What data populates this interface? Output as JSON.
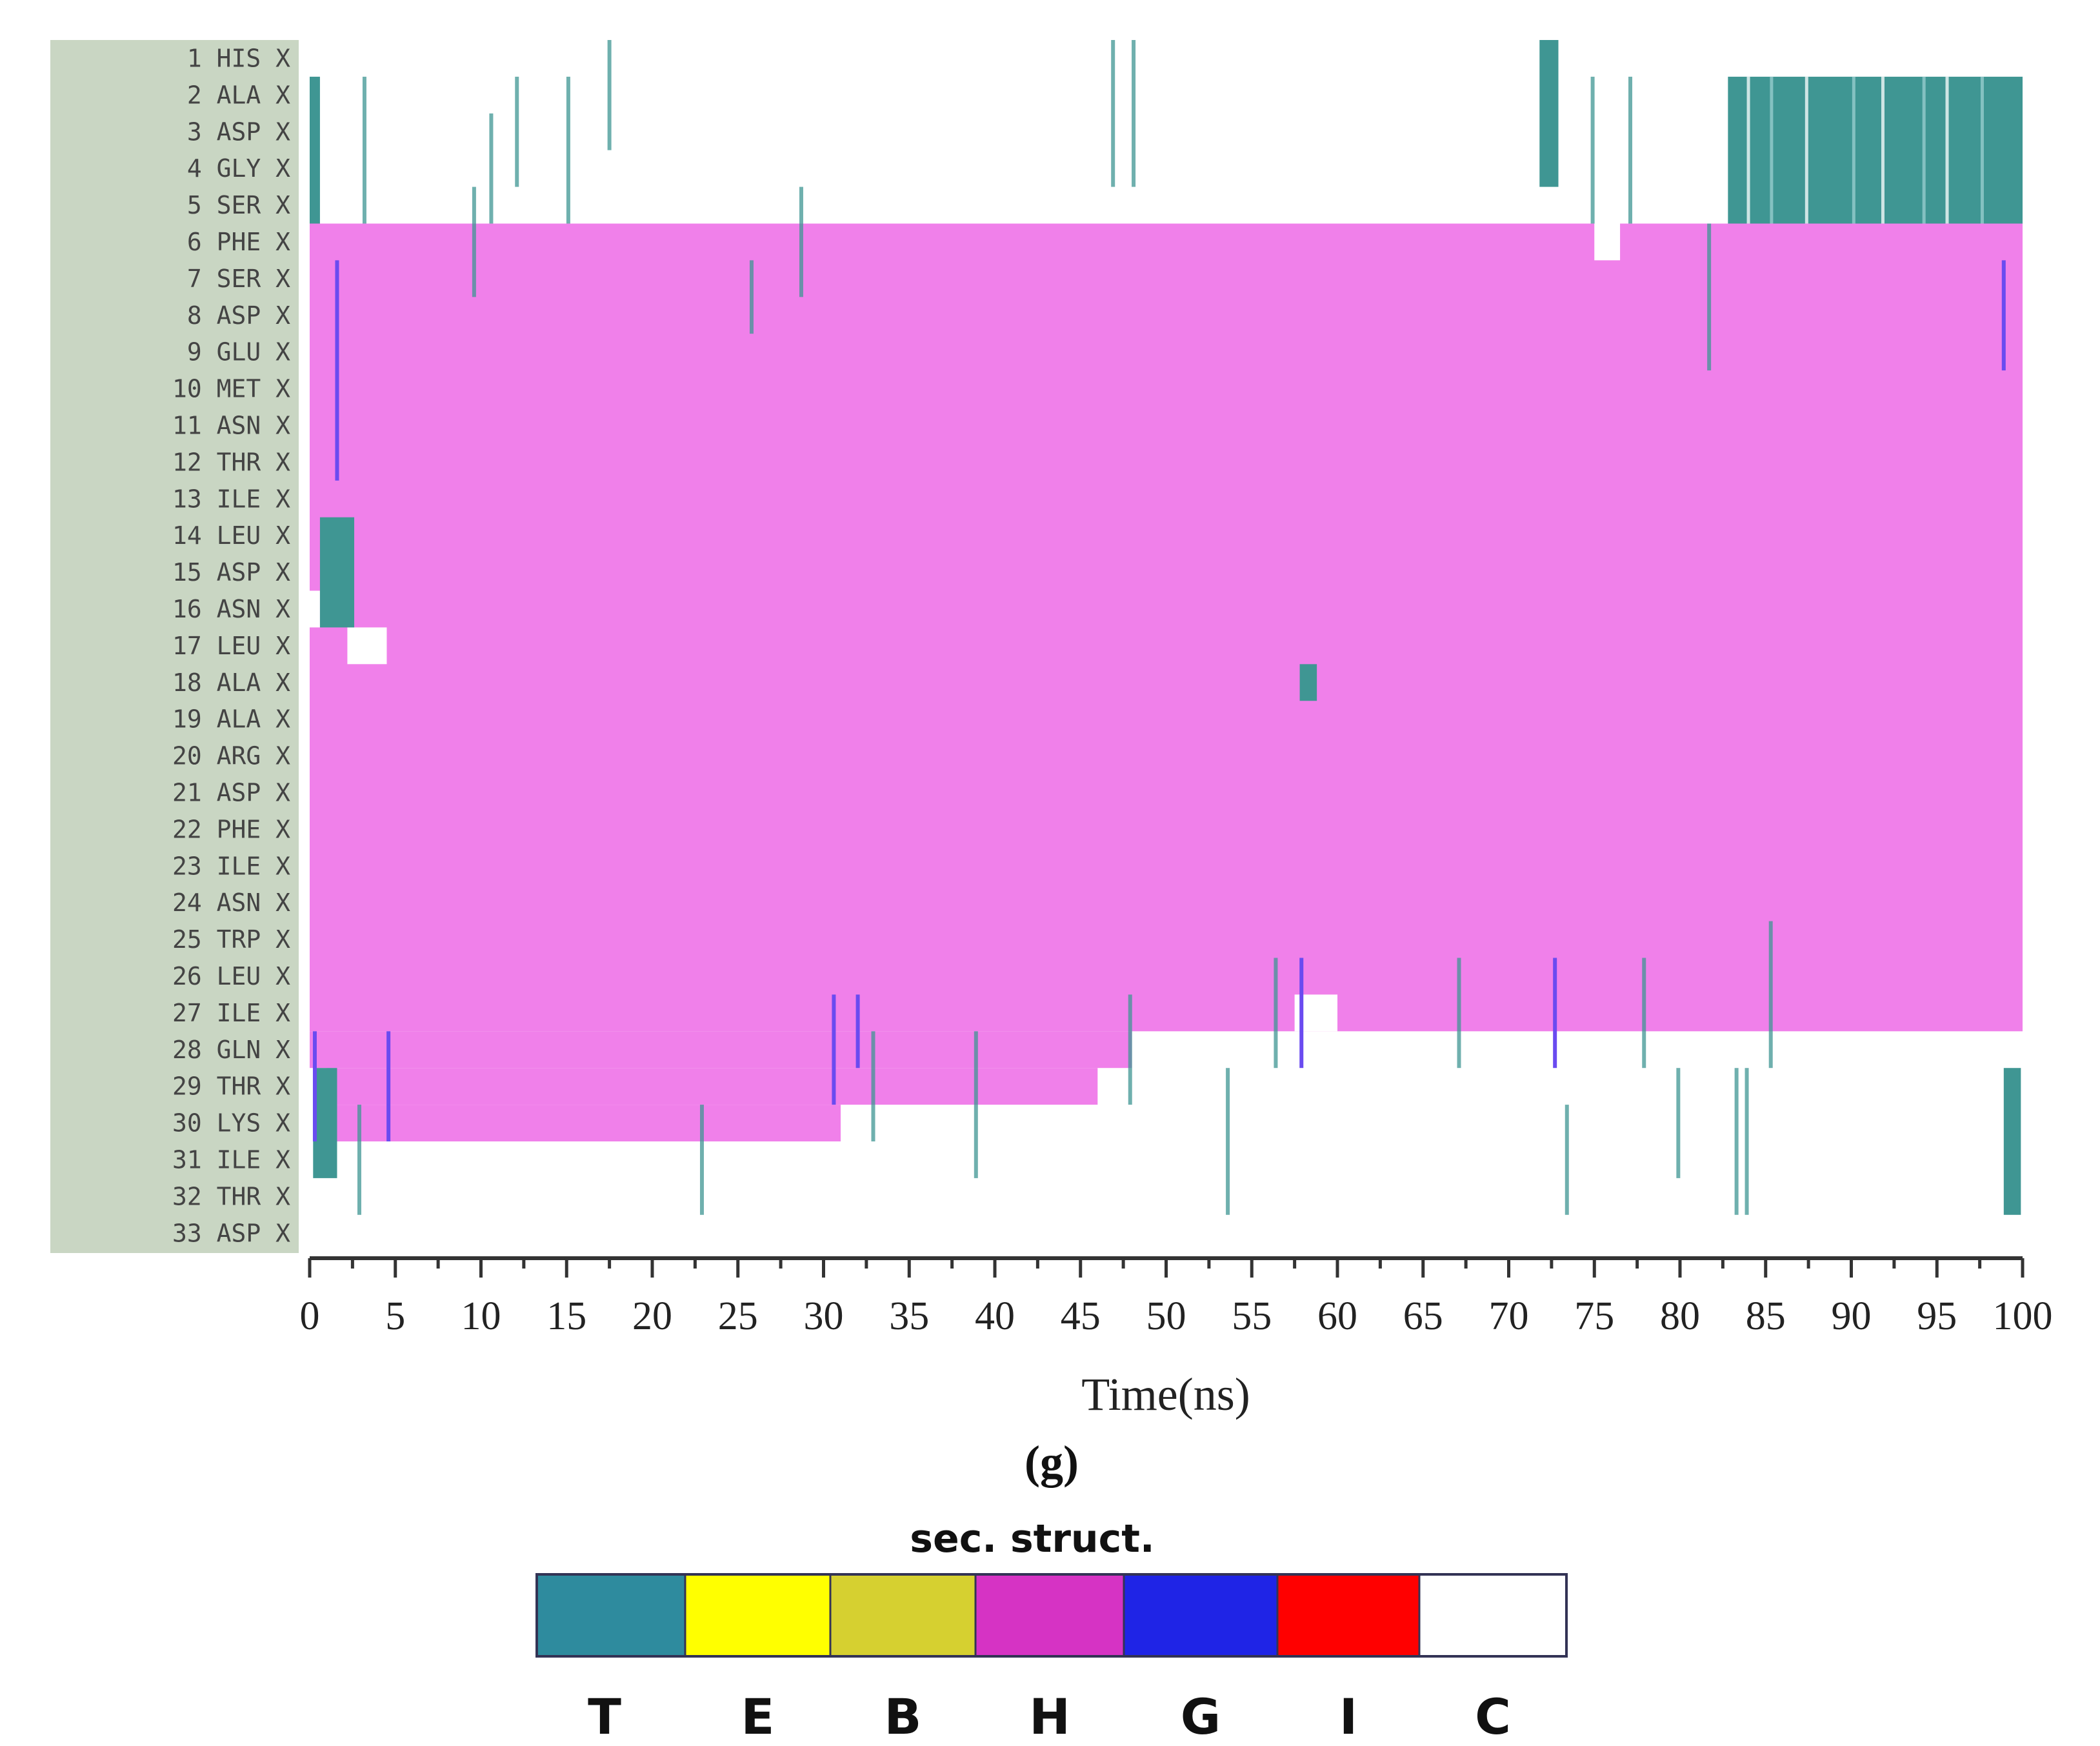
{
  "chart_data": {
    "type": "heatmap",
    "title": "",
    "xlabel": "Time(ns)",
    "ylabel": "",
    "panel_label": "(g)",
    "xlim": [
      0,
      100
    ],
    "x_ticks": [
      "0",
      "5",
      "10",
      "15",
      "20",
      "25",
      "30",
      "35",
      "40",
      "45",
      "50",
      "55",
      "60",
      "65",
      "70",
      "75",
      "80",
      "85",
      "90",
      "95",
      "100"
    ],
    "residues": [
      "1 HIS X",
      "2 ALA X",
      "3 ASP X",
      "4 GLY X",
      "5 SER X",
      "6 PHE X",
      "7 SER X",
      "8 ASP X",
      "9 GLU X",
      "10 MET X",
      "11 ASN X",
      "12 THR X",
      "13 ILE X",
      "14 LEU X",
      "15 ASP X",
      "16 ASN X",
      "17 LEU X",
      "18 ALA X",
      "19 ALA X",
      "20 ARG X",
      "21 ASP X",
      "22 PHE X",
      "23 ILE X",
      "24 ASN X",
      "25 TRP X",
      "26 LEU X",
      "27 ILE X",
      "28 GLN X",
      "29 THR X",
      "30 LYS X",
      "31 ILE X",
      "32 THR X",
      "33 ASP X"
    ],
    "legend_title": "sec. struct.",
    "legend": [
      {
        "key": "T",
        "color": "#2e8b9e"
      },
      {
        "key": "E",
        "color": "#ffff00"
      },
      {
        "key": "B",
        "color": "#d6d030"
      },
      {
        "key": "H",
        "color": "#d633c4"
      },
      {
        "key": "G",
        "color": "#1f24e6"
      },
      {
        "key": "I",
        "color": "#ff0000"
      },
      {
        "key": "C",
        "color": "#ffffff"
      }
    ],
    "display_colors": {
      "helix": "#f080ea",
      "turn": "#3f9693",
      "turn_light": "#9ccfd0",
      "g310": "#6a4bf0",
      "coil": "#ffffff"
    },
    "helix_regions": [
      {
        "from_residue": 6,
        "to_residue": 27,
        "t_start": 0,
        "t_end": 100
      },
      {
        "from_residue": 28,
        "to_residue": 28,
        "t_start": 0,
        "t_end": 48
      },
      {
        "from_residue": 29,
        "to_residue": 29,
        "t_start": 1,
        "t_end": 46
      },
      {
        "from_residue": 30,
        "to_residue": 30,
        "t_start": 1,
        "t_end": 31
      }
    ],
    "turn_blocks": [
      {
        "from_residue": 2,
        "to_residue": 5,
        "t_start": 82.8,
        "t_end": 100
      },
      {
        "from_residue": 1,
        "to_residue": 4,
        "t_start": 71.8,
        "t_end": 72.9
      },
      {
        "from_residue": 2,
        "to_residue": 5,
        "t_start": 0,
        "t_end": 0.6
      },
      {
        "from_residue": 29,
        "to_residue": 32,
        "t_start": 98.9,
        "t_end": 99.9
      },
      {
        "from_residue": 29,
        "to_residue": 31,
        "t_start": 0.2,
        "t_end": 1.6
      },
      {
        "from_residue": 14,
        "to_residue": 16,
        "t_start": 0.6,
        "t_end": 2.6
      },
      {
        "from_residue": 18,
        "to_residue": 18,
        "t_start": 57.8,
        "t_end": 58.8
      }
    ],
    "coil_blocks": [
      {
        "from_residue": 17,
        "to_residue": 17,
        "t_start": 2.2,
        "t_end": 4.5
      },
      {
        "from_residue": 16,
        "to_residue": 16,
        "t_start": 0,
        "t_end": 0.6
      },
      {
        "from_residue": 6,
        "to_residue": 6,
        "t_start": 75,
        "t_end": 76.5
      },
      {
        "from_residue": 27,
        "to_residue": 27,
        "t_start": 57.5,
        "t_end": 60
      }
    ],
    "turn_events": [
      {
        "residues": [
          1,
          3
        ],
        "time": 17.5
      },
      {
        "residues": [
          1,
          4
        ],
        "time": 46.9
      },
      {
        "residues": [
          1,
          4
        ],
        "time": 48.1
      },
      {
        "residues": [
          2,
          5
        ],
        "time": 3.2
      },
      {
        "residues": [
          2,
          5
        ],
        "time": 15.1
      },
      {
        "residues": [
          2,
          4
        ],
        "time": 12.1
      },
      {
        "residues": [
          3,
          5
        ],
        "time": 10.6
      },
      {
        "residues": [
          5,
          7
        ],
        "time": 9.6
      },
      {
        "residues": [
          5,
          7
        ],
        "time": 28.7
      },
      {
        "residues": [
          7,
          8
        ],
        "time": 25.8
      },
      {
        "residues": [
          6,
          9
        ],
        "time": 81.7
      },
      {
        "residues": [
          2,
          5
        ],
        "time": 74.9
      },
      {
        "residues": [
          2,
          5
        ],
        "time": 77.1
      },
      {
        "residues": [
          25,
          28
        ],
        "time": 85.3
      },
      {
        "residues": [
          26,
          28
        ],
        "time": 56.4
      },
      {
        "residues": [
          26,
          28
        ],
        "time": 67.1
      },
      {
        "residues": [
          26,
          28
        ],
        "time": 77.9
      },
      {
        "residues": [
          27,
          29
        ],
        "time": 47.9
      },
      {
        "residues": [
          28,
          31
        ],
        "time": 38.9
      },
      {
        "residues": [
          28,
          30
        ],
        "time": 32.9
      },
      {
        "residues": [
          29,
          32
        ],
        "time": 53.6
      },
      {
        "residues": [
          29,
          31
        ],
        "time": 79.9
      },
      {
        "residues": [
          30,
          32
        ],
        "time": 73.4
      },
      {
        "residues": [
          30,
          32
        ],
        "time": 22.9
      },
      {
        "residues": [
          29,
          32
        ],
        "time": 83.3
      },
      {
        "residues": [
          29,
          32
        ],
        "time": 83.9
      },
      {
        "residues": [
          30,
          32
        ],
        "time": 2.9
      }
    ],
    "g310_events": [
      {
        "residues": [
          7,
          12
        ],
        "time": 1.6
      },
      {
        "residues": [
          7,
          9
        ],
        "time": 98.9
      },
      {
        "residues": [
          26,
          28
        ],
        "time": 57.9
      },
      {
        "residues": [
          26,
          28
        ],
        "time": 72.7
      },
      {
        "residues": [
          27,
          29
        ],
        "time": 30.6
      },
      {
        "residues": [
          27,
          28
        ],
        "time": 32.0
      },
      {
        "residues": [
          28,
          30
        ],
        "time": 4.6
      },
      {
        "residues": [
          28,
          30
        ],
        "time": 0.3
      }
    ]
  }
}
